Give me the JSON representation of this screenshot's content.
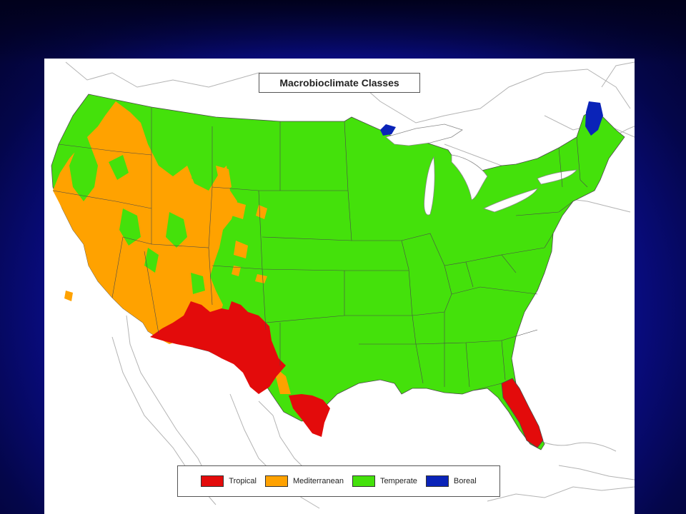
{
  "map": {
    "title": "Macrobioclimate Classes",
    "legend": [
      {
        "label": "Tropical",
        "color": "#e30b0b"
      },
      {
        "label": "Mediterranean",
        "color": "#ffa200"
      },
      {
        "label": "Temperate",
        "color": "#44e10b"
      },
      {
        "label": "Boreal",
        "color": "#0a23b8"
      }
    ],
    "outline_color": "#8a8a8a"
  }
}
